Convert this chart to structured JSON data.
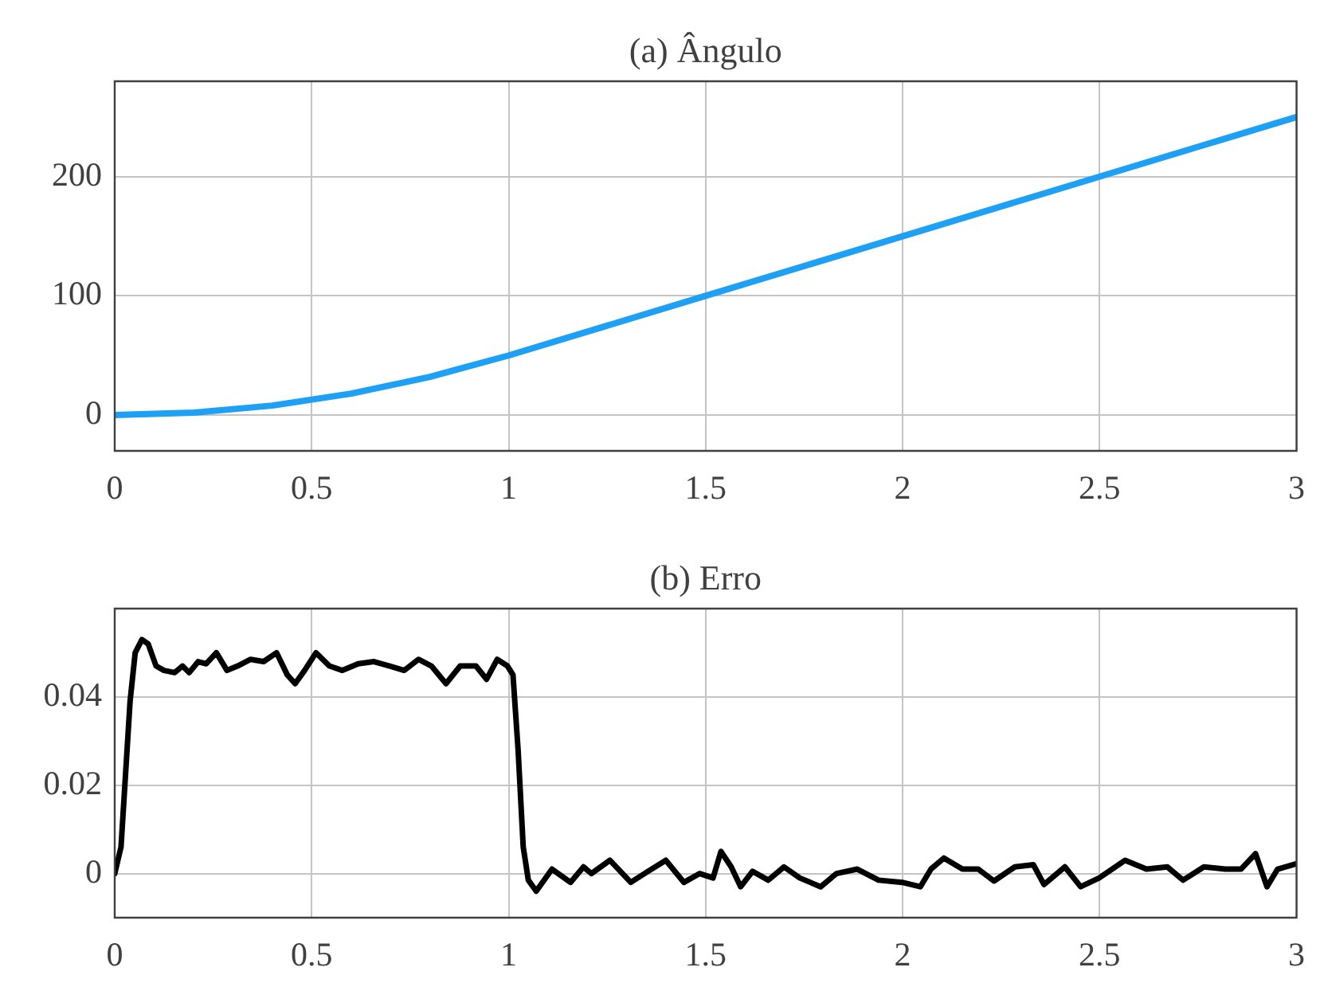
{
  "chart_data": [
    {
      "type": "line",
      "title": "(a) Ângulo",
      "color": "#1ea0f5",
      "grid": true,
      "x": [
        0,
        0.1,
        0.2,
        0.3,
        0.4,
        0.5,
        0.6,
        0.7,
        0.8,
        0.9,
        1,
        1.5,
        2,
        2.5,
        3
      ],
      "values": [
        0,
        1,
        2,
        5,
        8,
        13,
        18,
        25,
        32,
        41,
        50,
        100,
        150,
        200,
        250
      ],
      "xlim": [
        0,
        3
      ],
      "xticks": [
        0,
        0.5,
        1,
        1.5,
        2,
        2.5,
        3
      ],
      "ylim": [
        -30,
        280
      ],
      "yticks": [
        0,
        100,
        200
      ]
    },
    {
      "type": "line",
      "title": "(b) Erro",
      "color": "#000000",
      "grid": true,
      "x": [
        0,
        0.016,
        0.039,
        0.052,
        0.069,
        0.085,
        0.105,
        0.125,
        0.152,
        0.172,
        0.189,
        0.212,
        0.232,
        0.258,
        0.285,
        0.312,
        0.345,
        0.378,
        0.411,
        0.438,
        0.458,
        0.482,
        0.511,
        0.545,
        0.578,
        0.618,
        0.658,
        0.698,
        0.735,
        0.771,
        0.804,
        0.841,
        0.877,
        0.917,
        0.944,
        0.971,
        0.997,
        1.011,
        1.024,
        1.037,
        1.05,
        1.07,
        1.11,
        1.157,
        1.19,
        1.21,
        1.257,
        1.31,
        1.352,
        1.399,
        1.445,
        1.485,
        1.519,
        1.539,
        1.565,
        1.589,
        1.619,
        1.659,
        1.699,
        1.739,
        1.792,
        1.832,
        1.885,
        1.939,
        1.999,
        2.045,
        2.072,
        2.105,
        2.152,
        2.192,
        2.232,
        2.285,
        2.332,
        2.359,
        2.412,
        2.452,
        2.499,
        2.565,
        2.619,
        2.672,
        2.712,
        2.765,
        2.819,
        2.859,
        2.896,
        2.925,
        2.952,
        2.999
      ],
      "values": [
        0,
        0.006,
        0.039,
        0.05,
        0.053,
        0.052,
        0.047,
        0.046,
        0.0455,
        0.047,
        0.0455,
        0.048,
        0.0475,
        0.05,
        0.046,
        0.047,
        0.0485,
        0.048,
        0.05,
        0.045,
        0.043,
        0.046,
        0.05,
        0.047,
        0.046,
        0.0475,
        0.048,
        0.047,
        0.046,
        0.0485,
        0.047,
        0.043,
        0.047,
        0.047,
        0.044,
        0.0485,
        0.047,
        0.045,
        0.028,
        0.006,
        -0.0015,
        -0.004,
        0.001,
        -0.002,
        0.0015,
        0,
        0.003,
        -0.002,
        0.0004,
        0.003,
        -0.002,
        0,
        -0.001,
        0.005,
        0.0015,
        -0.003,
        0.0005,
        -0.0015,
        0.0015,
        -0.001,
        -0.003,
        0,
        0.001,
        -0.0015,
        -0.002,
        -0.003,
        0.001,
        0.0035,
        0.001,
        0.001,
        -0.0017,
        0.0015,
        0.002,
        -0.0025,
        0.0015,
        -0.003,
        -0.001,
        0.003,
        0.001,
        0.0015,
        -0.0015,
        0.0015,
        0.001,
        0.001,
        0.0045,
        -0.003,
        0.001,
        0.0022
      ],
      "xlim": [
        0,
        3
      ],
      "xticks": [
        0,
        0.5,
        1,
        1.5,
        2,
        2.5,
        3
      ],
      "ylim": [
        -0.01,
        0.06
      ],
      "yticks": [
        0,
        0.02,
        0.04
      ]
    }
  ]
}
